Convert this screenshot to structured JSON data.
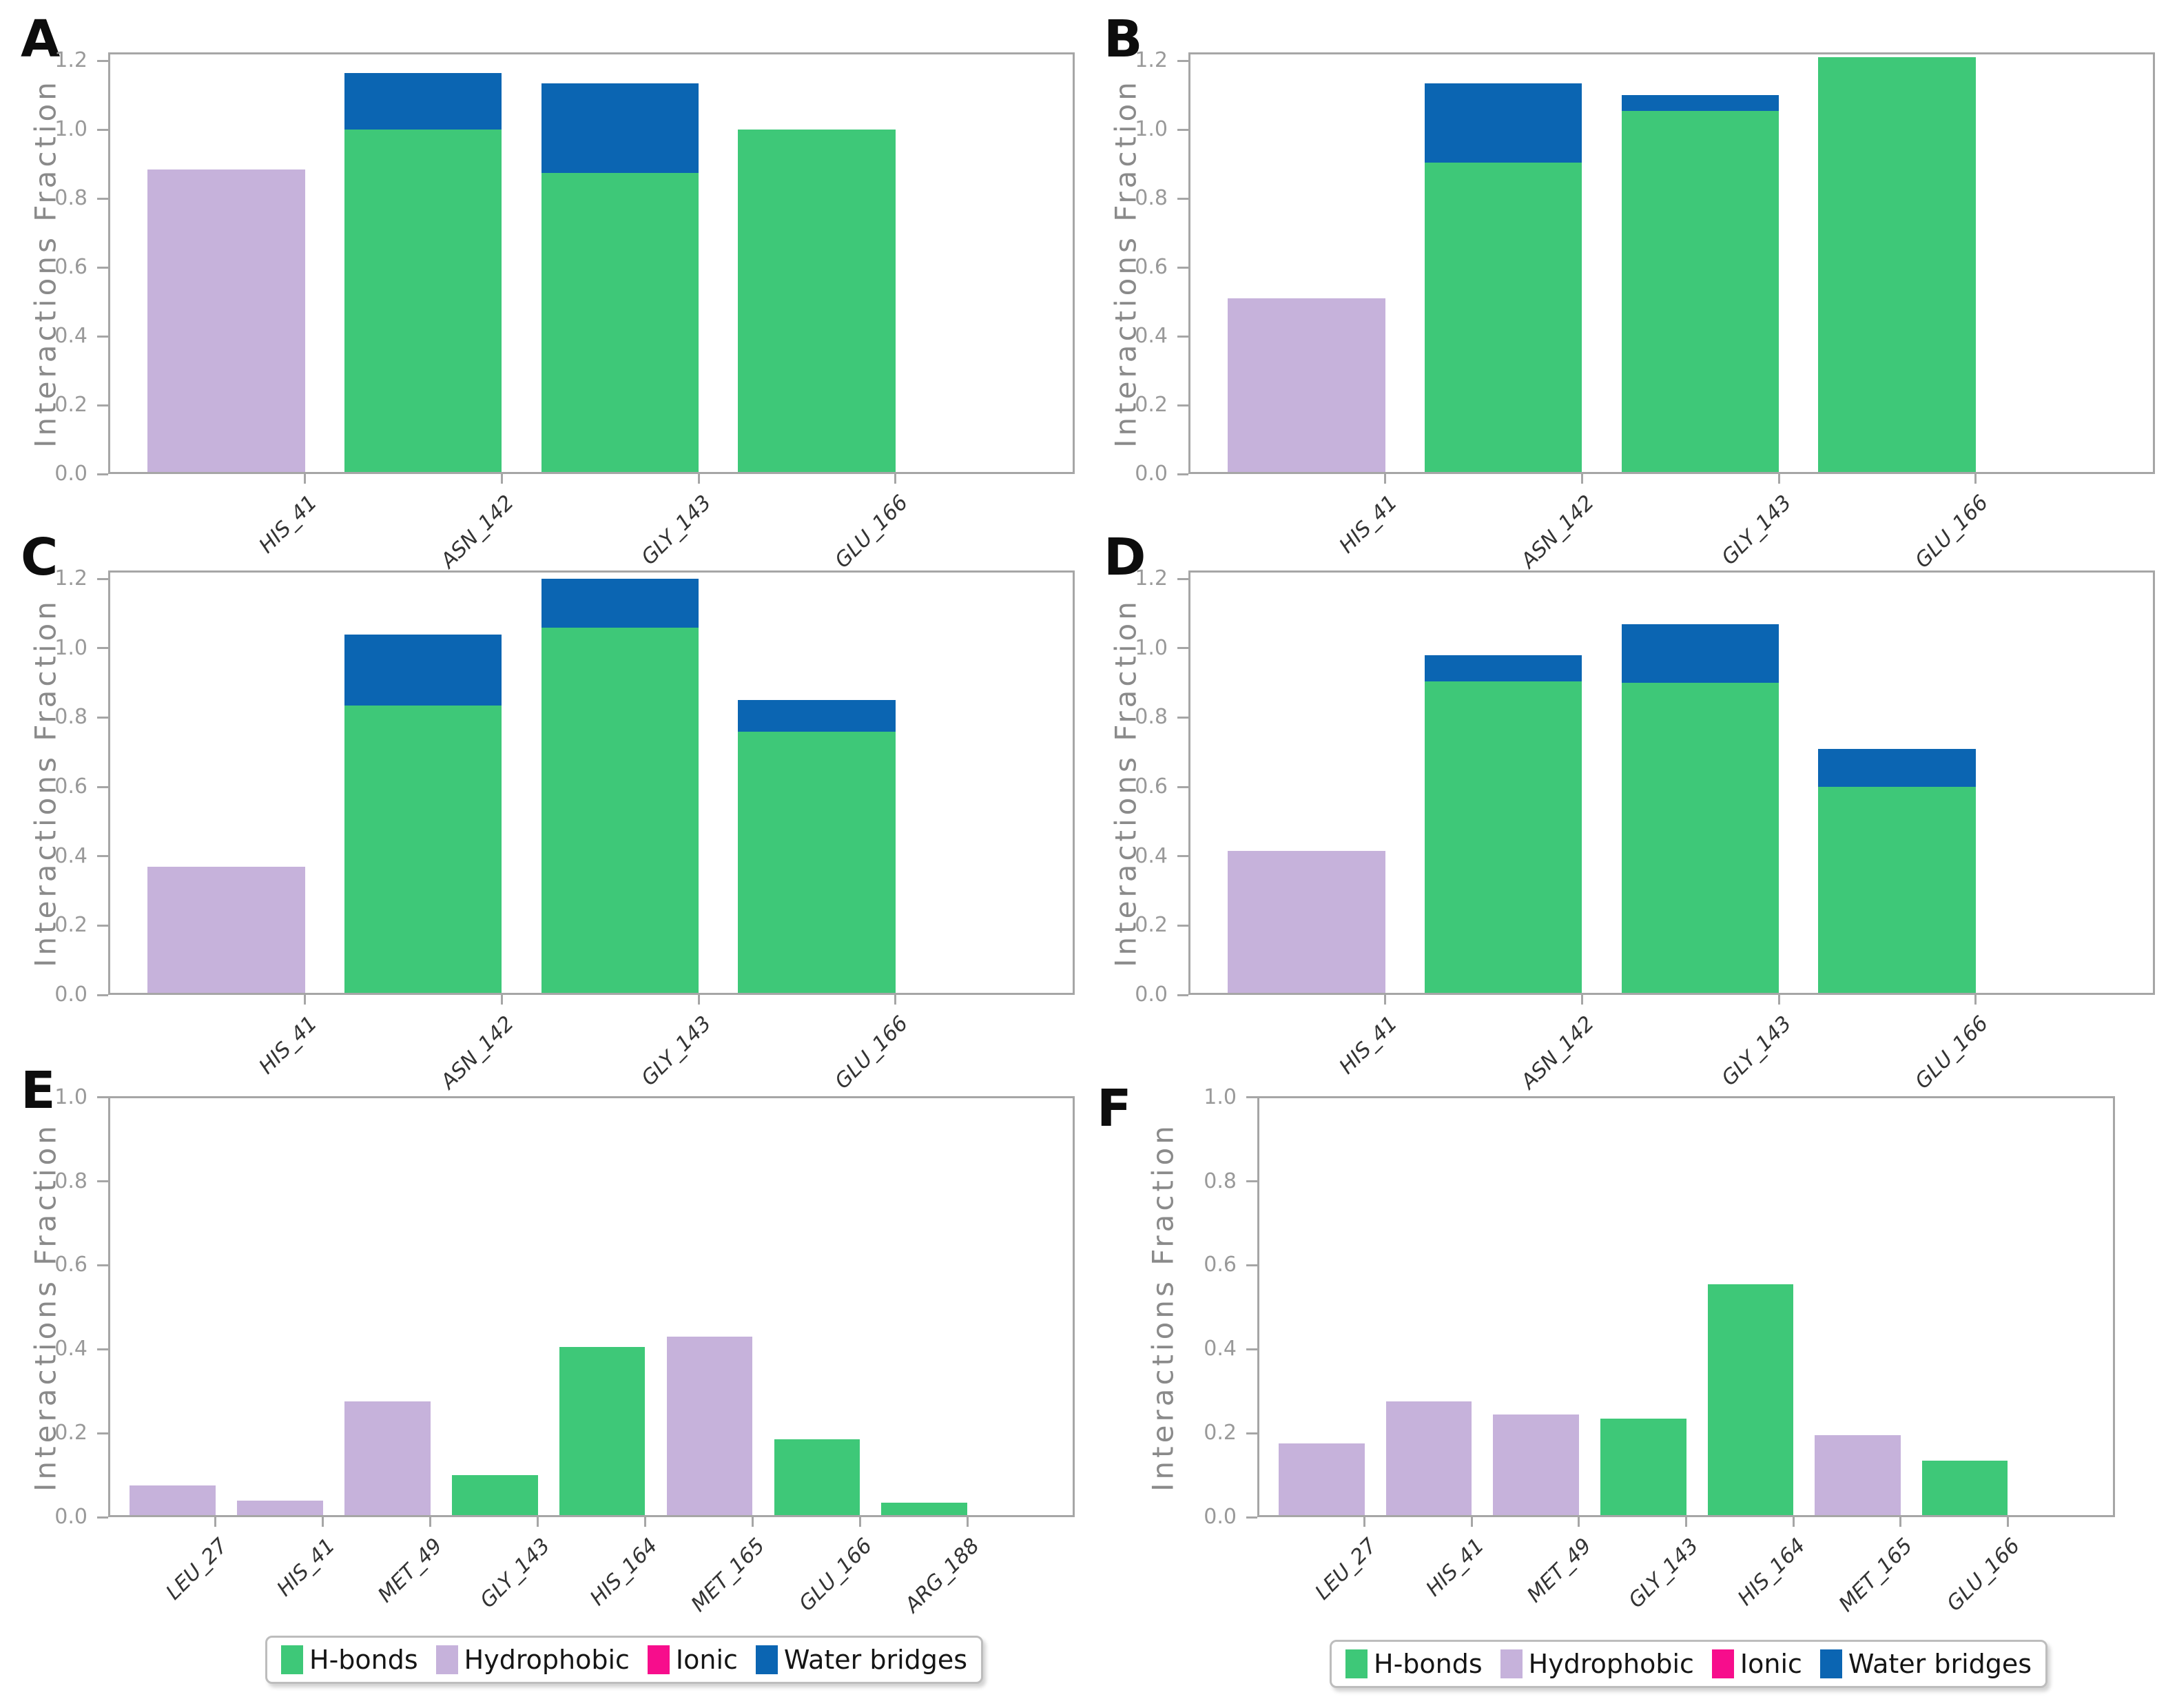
{
  "figure": {
    "background": "#ffffff",
    "ylabel": "Interactions Fraction",
    "series_colors": {
      "H-bonds": "#3EC878",
      "Hydrophobic": "#C6B2DB",
      "Ionic": "#F70D8C",
      "Water bridges": "#0B65B2"
    }
  },
  "legend": {
    "items": [
      {
        "label": "H-bonds",
        "color": "#3EC878"
      },
      {
        "label": "Hydrophobic",
        "color": "#C6B2DB"
      },
      {
        "label": "Ionic",
        "color": "#F70D8C"
      },
      {
        "label": "Water bridges",
        "color": "#0B65B2"
      }
    ]
  },
  "chart_data": [
    {
      "panel": "A",
      "type": "bar",
      "stacked": true,
      "ylabel": "Interactions Fraction",
      "ylim": [
        0,
        1.224
      ],
      "yticks": [
        "0.0",
        "0.2",
        "0.4",
        "0.6",
        "0.8",
        "1.0",
        "1.2"
      ],
      "categories": [
        "HIS_41",
        "ASN_142",
        "GLY_143",
        "GLU_166"
      ],
      "series": [
        {
          "name": "H-bonds",
          "color": "#3EC878",
          "values": [
            0,
            1.0,
            0.875,
            1.0
          ]
        },
        {
          "name": "Hydrophobic",
          "color": "#C6B2DB",
          "values": [
            0.885,
            0,
            0,
            0
          ]
        },
        {
          "name": "Water bridges",
          "color": "#0B65B2",
          "values": [
            0,
            0.165,
            0.26,
            0
          ]
        }
      ]
    },
    {
      "panel": "B",
      "type": "bar",
      "stacked": true,
      "ylabel": "Interactions Fraction",
      "ylim": [
        0,
        1.224
      ],
      "yticks": [
        "0.0",
        "0.2",
        "0.4",
        "0.6",
        "0.8",
        "1.0",
        "1.2"
      ],
      "categories": [
        "HIS_41",
        "ASN_142",
        "GLY_143",
        "GLU_166"
      ],
      "series": [
        {
          "name": "H-bonds",
          "color": "#3EC878",
          "values": [
            0,
            0.905,
            1.055,
            1.21
          ]
        },
        {
          "name": "Hydrophobic",
          "color": "#C6B2DB",
          "values": [
            0.51,
            0,
            0,
            0
          ]
        },
        {
          "name": "Water bridges",
          "color": "#0B65B2",
          "values": [
            0,
            0.23,
            0.045,
            0
          ]
        }
      ]
    },
    {
      "panel": "C",
      "type": "bar",
      "stacked": true,
      "ylabel": "Interactions Fraction",
      "ylim": [
        0,
        1.224
      ],
      "yticks": [
        "0.0",
        "0.2",
        "0.4",
        "0.6",
        "0.8",
        "1.0",
        "1.2"
      ],
      "categories": [
        "HIS_41",
        "ASN_142",
        "GLY_143",
        "GLU_166"
      ],
      "series": [
        {
          "name": "H-bonds",
          "color": "#3EC878",
          "values": [
            0,
            0.835,
            1.06,
            0.76
          ]
        },
        {
          "name": "Hydrophobic",
          "color": "#C6B2DB",
          "values": [
            0.37,
            0,
            0,
            0
          ]
        },
        {
          "name": "Water bridges",
          "color": "#0B65B2",
          "values": [
            0,
            0.205,
            0.14,
            0.09
          ]
        }
      ]
    },
    {
      "panel": "D",
      "type": "bar",
      "stacked": true,
      "ylabel": "Interactions Fraction",
      "ylim": [
        0,
        1.224
      ],
      "yticks": [
        "0.0",
        "0.2",
        "0.4",
        "0.6",
        "0.8",
        "1.0",
        "1.2"
      ],
      "categories": [
        "HIS_41",
        "ASN_142",
        "GLY_143",
        "GLU_166"
      ],
      "series": [
        {
          "name": "H-bonds",
          "color": "#3EC878",
          "values": [
            0,
            0.905,
            0.9,
            0.6
          ]
        },
        {
          "name": "Hydrophobic",
          "color": "#C6B2DB",
          "values": [
            0.415,
            0,
            0,
            0
          ]
        },
        {
          "name": "Water bridges",
          "color": "#0B65B2",
          "values": [
            0,
            0.075,
            0.17,
            0.11
          ]
        }
      ]
    },
    {
      "panel": "E",
      "type": "bar",
      "stacked": true,
      "ylabel": "Interactions Fraction",
      "ylim": [
        0,
        1.003
      ],
      "yticks": [
        "0.0",
        "0.2",
        "0.4",
        "0.6",
        "0.8",
        "1.0"
      ],
      "categories": [
        "LEU_27",
        "HIS_41",
        "MET_49",
        "GLY_143",
        "HIS_164",
        "MET_165",
        "GLU_166",
        "ARG_188"
      ],
      "series": [
        {
          "name": "H-bonds",
          "color": "#3EC878",
          "values": [
            0,
            0,
            0,
            0.1,
            0.405,
            0,
            0.185,
            0.035
          ]
        },
        {
          "name": "Hydrophobic",
          "color": "#C6B2DB",
          "values": [
            0.075,
            0.04,
            0.275,
            0,
            0,
            0.43,
            0,
            0
          ]
        }
      ]
    },
    {
      "panel": "F",
      "type": "bar",
      "stacked": true,
      "ylabel": "Interactions Fraction",
      "ylim": [
        0,
        1.003
      ],
      "yticks": [
        "0.0",
        "0.2",
        "0.4",
        "0.6",
        "0.8",
        "1.0"
      ],
      "categories": [
        "LEU_27",
        "HIS_41",
        "MET_49",
        "GLY_143",
        "HIS_164",
        "MET_165",
        "GLU_166"
      ],
      "series": [
        {
          "name": "H-bonds",
          "color": "#3EC878",
          "values": [
            0,
            0,
            0,
            0.235,
            0.555,
            0,
            0.135
          ]
        },
        {
          "name": "Hydrophobic",
          "color": "#C6B2DB",
          "values": [
            0.175,
            0.275,
            0.245,
            0,
            0,
            0.195,
            0
          ]
        }
      ]
    }
  ]
}
